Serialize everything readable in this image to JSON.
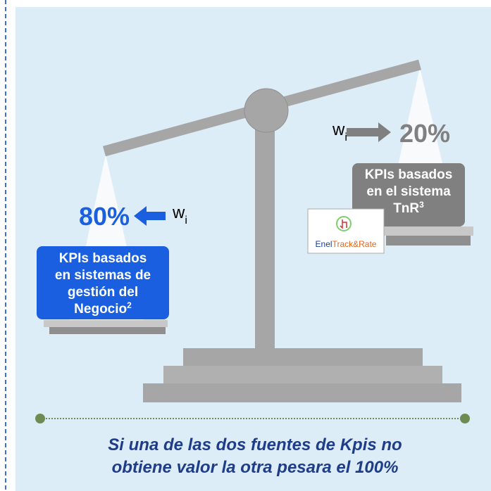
{
  "left": {
    "percent": "80%",
    "weight": "w",
    "weight_sub": "i",
    "box_lines": [
      "KPIs basados",
      "en sistemas de",
      "gestión  del",
      "Negocio"
    ],
    "box_sup": "2"
  },
  "right": {
    "percent": "20%",
    "weight": "w",
    "weight_sub": "i",
    "box_lines": [
      "KPIs basados",
      "en el sistema",
      "TnR"
    ],
    "box_sup": "3",
    "logo_a": "Enel",
    "logo_b": "Track&Rate"
  },
  "footer": [
    "Si una de las  dos fuentes de Kpis no",
    "obtiene valor la otra pesara el 100%"
  ]
}
